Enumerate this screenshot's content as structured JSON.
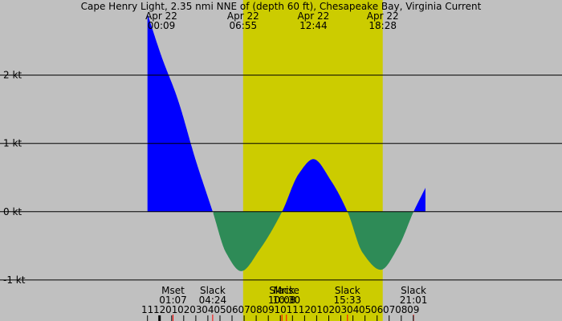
{
  "chart_data": {
    "type": "area",
    "title": "Cape Henry Light, 2.35 nmi NNE of (depth 60 ft), Chesapeake Bay, Virginia Current",
    "xlabel": "",
    "ylabel": "",
    "ylim": [
      -1.6,
      3.1
    ],
    "xlim_hours": [
      -13.2,
      33.3
    ],
    "daylight": {
      "start": "06:55",
      "end": "18:28",
      "start_hour": 6.917,
      "end_hour": 18.467,
      "color": "#cccc00"
    },
    "colors": {
      "background": "#c0c0c0",
      "flood": "#0000ff",
      "ebb": "#2e8b57",
      "gridline": "#000000",
      "tick_mark": "#ff0000"
    },
    "y_ticks": [
      {
        "value": 2,
        "label": "2 kt"
      },
      {
        "value": 1,
        "label": "1 kt"
      },
      {
        "value": 0,
        "label": "0 kt"
      },
      {
        "value": -1,
        "label": "-1 kt"
      }
    ],
    "top_labels": [
      {
        "date": "Apr 22",
        "time": "00:09",
        "hour": 0.15
      },
      {
        "date": "Apr 22",
        "time": "06:55",
        "hour": 6.917
      },
      {
        "date": "Apr 22",
        "time": "12:44",
        "hour": 12.733
      },
      {
        "date": "Apr 22",
        "time": "18:28",
        "hour": 18.467
      }
    ],
    "events": [
      {
        "name": "Mset",
        "time": "01:07",
        "hour": 1.117
      },
      {
        "name": "Slack",
        "time": "04:24",
        "hour": 4.4
      },
      {
        "name": "Slack",
        "time": "10:08",
        "hour": 10.133
      },
      {
        "name": "Mrise",
        "time": "10:30",
        "hour": 10.5
      },
      {
        "name": "Slack",
        "time": "15:33",
        "hour": 15.55
      },
      {
        "name": "Slack",
        "time": "21:01",
        "hour": 21.017
      }
    ],
    "hour_ticks": [
      {
        "label": "11",
        "hour": -1
      },
      {
        "label": "12",
        "hour": 0
      },
      {
        "label": "01",
        "hour": 1
      },
      {
        "label": "02",
        "hour": 2
      },
      {
        "label": "03",
        "hour": 3
      },
      {
        "label": "04",
        "hour": 4
      },
      {
        "label": "05",
        "hour": 5
      },
      {
        "label": "06",
        "hour": 6
      },
      {
        "label": "07",
        "hour": 7
      },
      {
        "label": "08",
        "hour": 8
      },
      {
        "label": "09",
        "hour": 9
      },
      {
        "label": "10",
        "hour": 10
      },
      {
        "label": "11",
        "hour": 11
      },
      {
        "label": "12",
        "hour": 12
      },
      {
        "label": "01",
        "hour": 13
      },
      {
        "label": "02",
        "hour": 14
      },
      {
        "label": "03",
        "hour": 15
      },
      {
        "label": "04",
        "hour": 16
      },
      {
        "label": "05",
        "hour": 17
      },
      {
        "label": "06",
        "hour": 18
      },
      {
        "label": "07",
        "hour": 19
      },
      {
        "label": "08",
        "hour": 20
      },
      {
        "label": "09",
        "hour": 21
      }
    ],
    "series": [
      {
        "x_hours": [
          -1,
          0.15,
          1.5,
          3,
          4.4,
          5.5,
          6.75,
          8.3,
          10.133,
          11.5,
          12.733,
          14.2,
          15.55,
          16.8,
          18.3,
          19.8,
          21.017,
          22
        ],
        "y_kt": [
          2.9,
          2.28,
          1.65,
          0.75,
          0,
          -0.6,
          -0.87,
          -0.55,
          0,
          0.55,
          0.77,
          0.45,
          0,
          -0.6,
          -0.85,
          -0.5,
          0,
          0.35
        ]
      }
    ]
  }
}
